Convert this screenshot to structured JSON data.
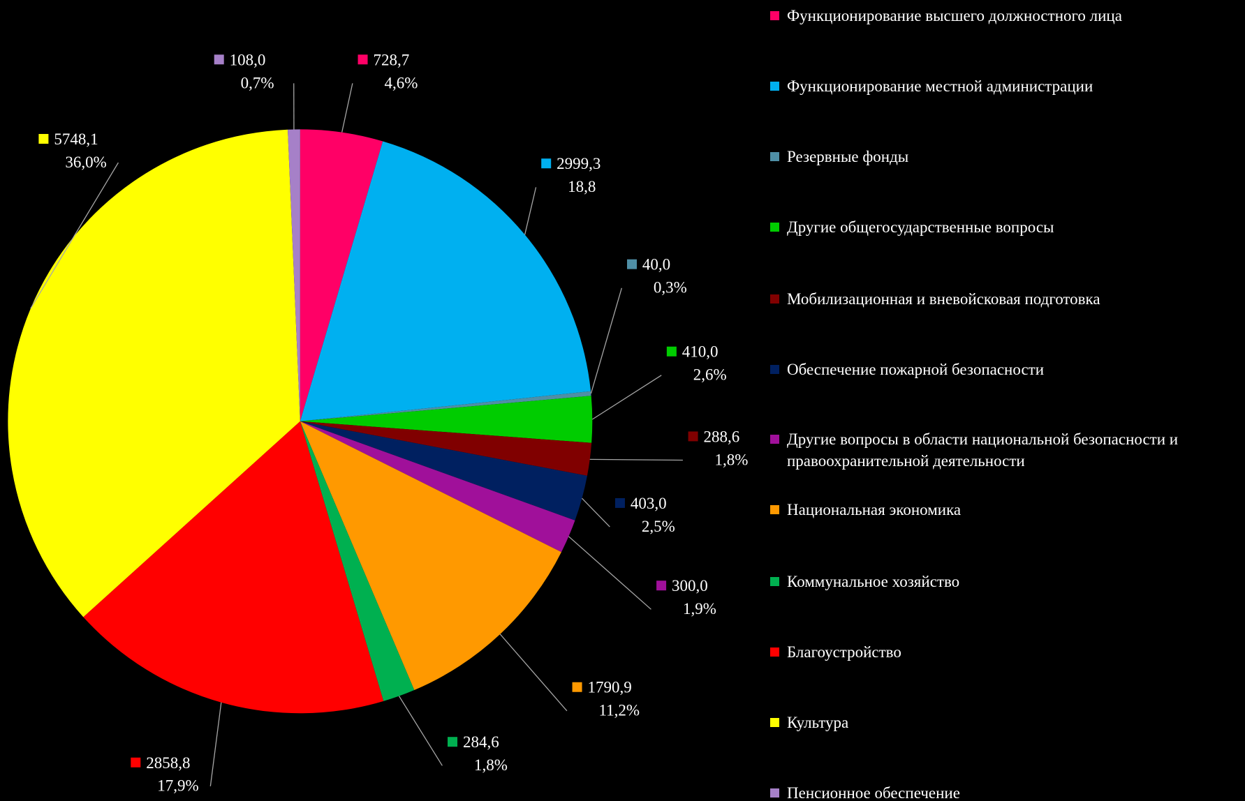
{
  "chart_data": {
    "type": "pie",
    "categories": [
      "Функционирование высшего должностного лица",
      "Функционирование местной администрации",
      "Резервные фонды",
      "Другие общегосударственные вопросы",
      "Мобилизационная и вневойсковая подготовка",
      "Обеспечение пожарной безопасности",
      "Другие вопросы в области национальной безопасности и правоохранительной деятельности",
      "Национальная экономика",
      "Коммунальное хозяйство",
      "Благоустройство",
      "Культура",
      "Пенсионное обеспечение"
    ],
    "values": [
      728.7,
      2999.3,
      40.0,
      410.0,
      288.6,
      403.0,
      300.0,
      1790.9,
      284.6,
      2858.8,
      5748.1,
      108.0
    ],
    "value_labels": [
      "728,7",
      "2999,3",
      "40,0",
      "410,0",
      "288,6",
      "403,0",
      "300,0",
      "1790,9",
      "284,6",
      "2858,8",
      "5748,1",
      "108,0"
    ],
    "percents": [
      4.6,
      18.8,
      0.3,
      2.6,
      1.8,
      2.5,
      1.9,
      11.2,
      1.8,
      17.9,
      36.0,
      0.7
    ],
    "percent_labels": [
      "4,6%",
      "18,8",
      "0,3%",
      "2,6%",
      "1,8%",
      "2,5%",
      "1,9%",
      "11,2%",
      "1,8%",
      "17,9%",
      "36,0%",
      "0,7%"
    ],
    "colors": [
      "#FF0066",
      "#00B0F0",
      "#4F8FA6",
      "#00CC00",
      "#800000",
      "#002060",
      "#A0109A",
      "#FF9900",
      "#00B050",
      "#FF0000",
      "#FFFF00",
      "#A680C8"
    ],
    "legend": "right"
  }
}
